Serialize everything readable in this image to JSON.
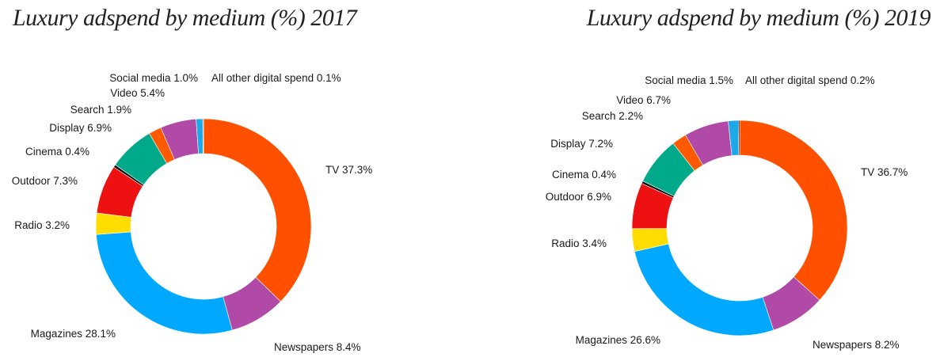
{
  "chart_data": [
    {
      "type": "pie",
      "title": "Luxury adspend by medium (%) 2017",
      "segments": [
        {
          "label": "TV",
          "value": 37.3,
          "color": "#ff5000"
        },
        {
          "label": "Newspapers",
          "value": 8.4,
          "color": "#b04aa6"
        },
        {
          "label": "Magazines",
          "value": 28.1,
          "color": "#00a9ff"
        },
        {
          "label": "Radio",
          "value": 3.2,
          "color": "#ffdd00"
        },
        {
          "label": "Outdoor",
          "value": 7.3,
          "color": "#ee1111"
        },
        {
          "label": "Cinema",
          "value": 0.4,
          "color": "#111111"
        },
        {
          "label": "Display",
          "value": 6.9,
          "color": "#00a98a"
        },
        {
          "label": "Search",
          "value": 1.9,
          "color": "#ff5a00"
        },
        {
          "label": "Video",
          "value": 5.4,
          "color": "#b04aa6"
        },
        {
          "label": "Social media",
          "value": 1.0,
          "color": "#1ea8e8"
        },
        {
          "label": "All other digital spend",
          "value": 0.1,
          "color": "#111111"
        }
      ],
      "value_labels": [
        "TV 37.3%",
        "Newspapers 8.4%",
        "Magazines 28.1%",
        "Radio 3.2%",
        "Outdoor 7.3%",
        "Cinema 0.4%",
        "Display 6.9%",
        "Search 1.9%",
        "Video 5.4%",
        "Social media 1.0%",
        "All other digital spend 0.1%"
      ]
    },
    {
      "type": "pie",
      "title": "Luxury adspend by medium (%) 2019",
      "segments": [
        {
          "label": "TV",
          "value": 36.7,
          "color": "#ff5000"
        },
        {
          "label": "Newspapers",
          "value": 8.2,
          "color": "#b04aa6"
        },
        {
          "label": "Magazines",
          "value": 26.6,
          "color": "#00a9ff"
        },
        {
          "label": "Radio",
          "value": 3.4,
          "color": "#ffdd00"
        },
        {
          "label": "Outdoor",
          "value": 6.9,
          "color": "#ee1111"
        },
        {
          "label": "Cinema",
          "value": 0.4,
          "color": "#111111"
        },
        {
          "label": "Display",
          "value": 7.2,
          "color": "#00a98a"
        },
        {
          "label": "Search",
          "value": 2.2,
          "color": "#ff5a00"
        },
        {
          "label": "Video",
          "value": 6.7,
          "color": "#b04aa6"
        },
        {
          "label": "Social media",
          "value": 1.5,
          "color": "#1ea8e8"
        },
        {
          "label": "All other digital spend",
          "value": 0.2,
          "color": "#111111"
        }
      ],
      "value_labels": [
        "TV 36.7%",
        "Newspapers 8.2%",
        "Magazines 26.6%",
        "Radio 3.4%",
        "Outdoor 6.9%",
        "Cinema 0.4%",
        "Display 7.2%",
        "Search 2.2%",
        "Video 6.7%",
        "Social media 1.5%",
        "All other digital spend 0.2%"
      ]
    }
  ]
}
